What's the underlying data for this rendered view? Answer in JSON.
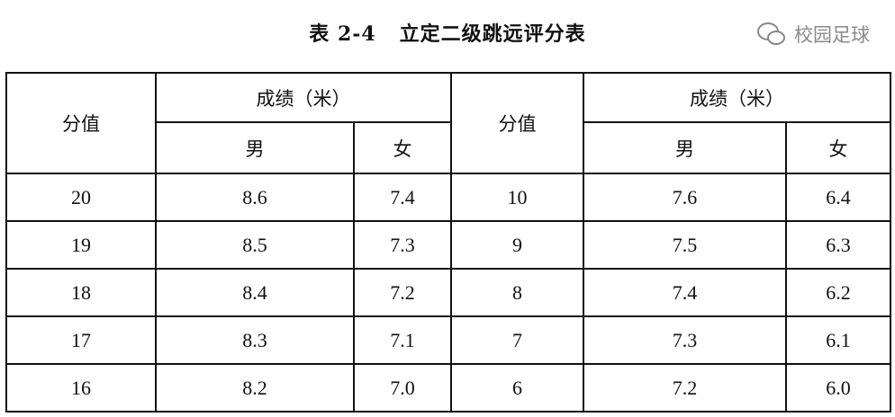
{
  "title": "表 2-4   立定二级跳远评分表",
  "headers": {
    "score": "分值",
    "result": "成绩（米）",
    "male": "男",
    "female": "女"
  },
  "left_rows": [
    {
      "score": "20",
      "male": "8.6",
      "female": "7.4"
    },
    {
      "score": "19",
      "male": "8.5",
      "female": "7.3"
    },
    {
      "score": "18",
      "male": "8.4",
      "female": "7.2"
    },
    {
      "score": "17",
      "male": "8.3",
      "female": "7.1"
    },
    {
      "score": "16",
      "male": "8.2",
      "female": "7.0"
    }
  ],
  "right_rows": [
    {
      "score": "10",
      "male": "7.6",
      "female": "6.4"
    },
    {
      "score": "9",
      "male": "7.5",
      "female": "6.3"
    },
    {
      "score": "8",
      "male": "7.4",
      "female": "6.2"
    },
    {
      "score": "7",
      "male": "7.3",
      "female": "6.1"
    },
    {
      "score": "6",
      "male": "7.2",
      "female": "6.0"
    }
  ],
  "watermark": {
    "text": "校园足球",
    "icon": "wechat-icon"
  }
}
